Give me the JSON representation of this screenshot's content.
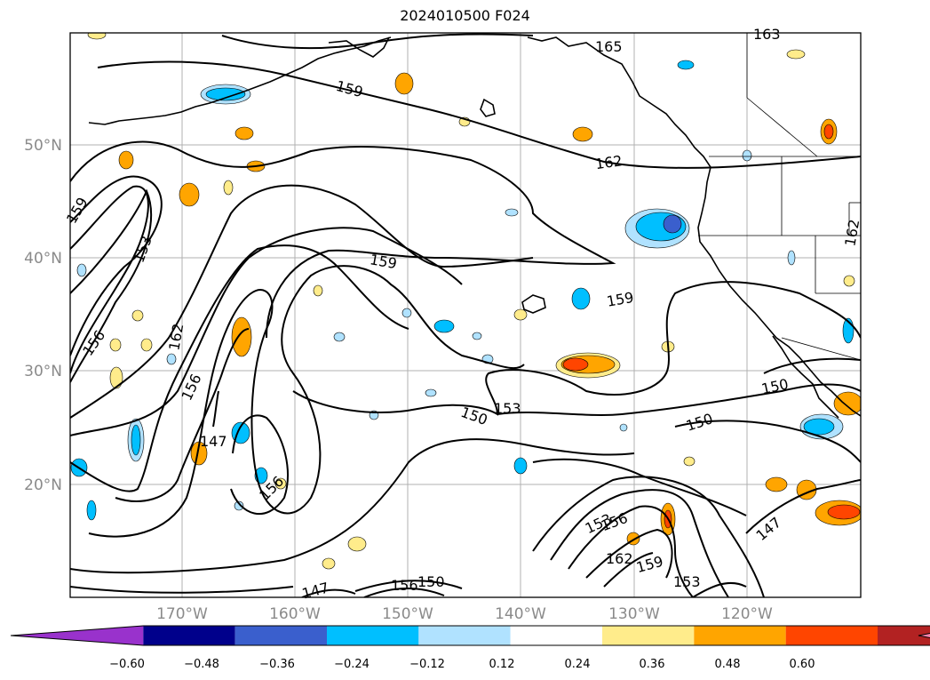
{
  "title": "2024010500 F024",
  "lat_labels": [
    "50°N",
    "40°N",
    "30°N",
    "20°N"
  ],
  "lon_labels": [
    "170°W",
    "160°W",
    "150°W",
    "140°W",
    "130°W",
    "120°W"
  ],
  "contour_labels": [
    "165",
    "163",
    "159",
    "162",
    "153",
    "159",
    "159",
    "156",
    "162",
    "156",
    "147",
    "156",
    "153",
    "150",
    "150",
    "150",
    "153",
    "156",
    "162",
    "159",
    "153",
    "147",
    "147",
    "156",
    "150",
    "162",
    "159"
  ],
  "colorbar": {
    "ticks": [
      "−0.60",
      "−0.48",
      "−0.36",
      "−0.24",
      "−0.12",
      "0.12",
      "0.24",
      "0.36",
      "0.48",
      "0.60"
    ],
    "colors": [
      "#9932cc",
      "#00008b",
      "#3a5fcd",
      "#00bfff",
      "#b0e2ff",
      "#ffffff",
      "#ffec8b",
      "#ffa500",
      "#ff4500",
      "#b22222",
      "#ff82ab"
    ]
  }
}
